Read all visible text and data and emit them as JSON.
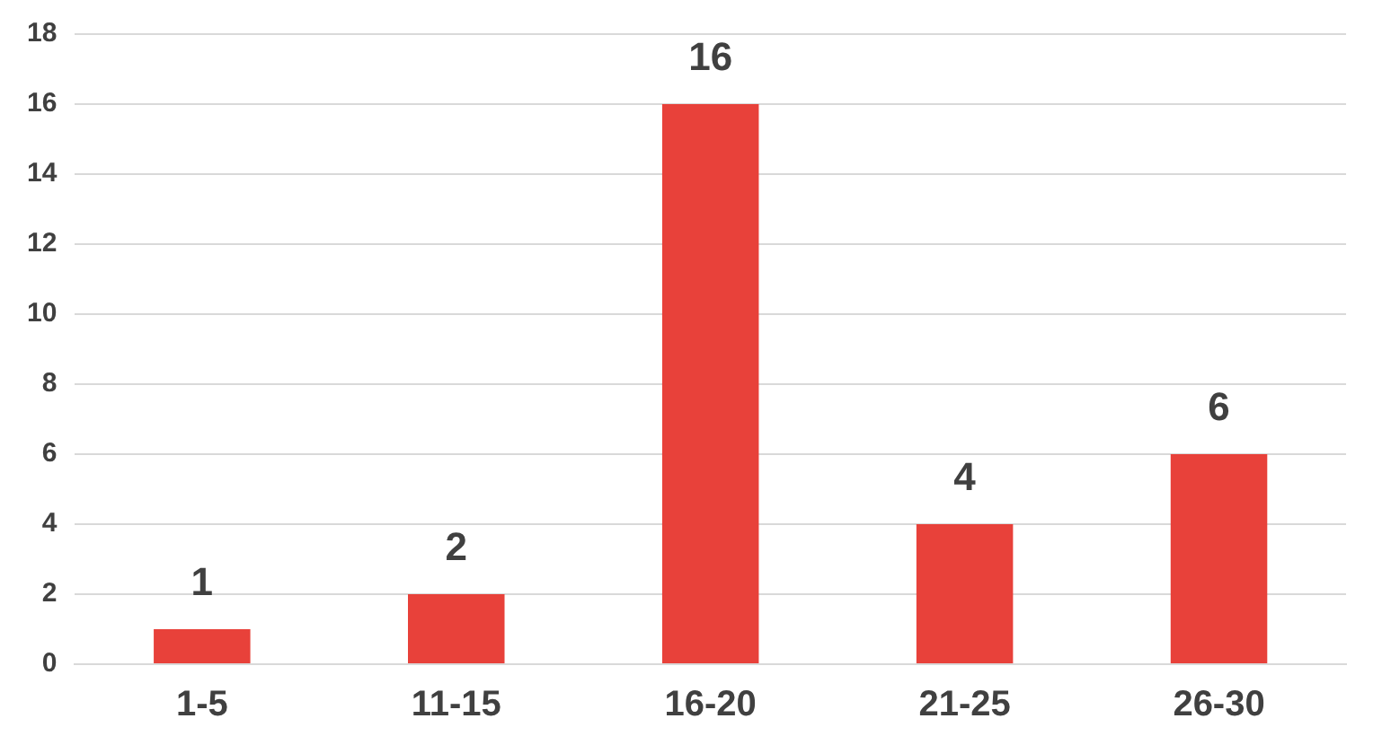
{
  "chart_data": {
    "type": "bar",
    "categories": [
      "1-5",
      "11-15",
      "16-20",
      "21-25",
      "26-30"
    ],
    "values": [
      1,
      2,
      16,
      4,
      6
    ],
    "color": "#e8413a",
    "ylim": [
      0,
      18
    ],
    "yticks": [
      0,
      2,
      4,
      6,
      8,
      10,
      12,
      14,
      16,
      18
    ],
    "grid": "y",
    "data_labels": true,
    "legend": false
  }
}
